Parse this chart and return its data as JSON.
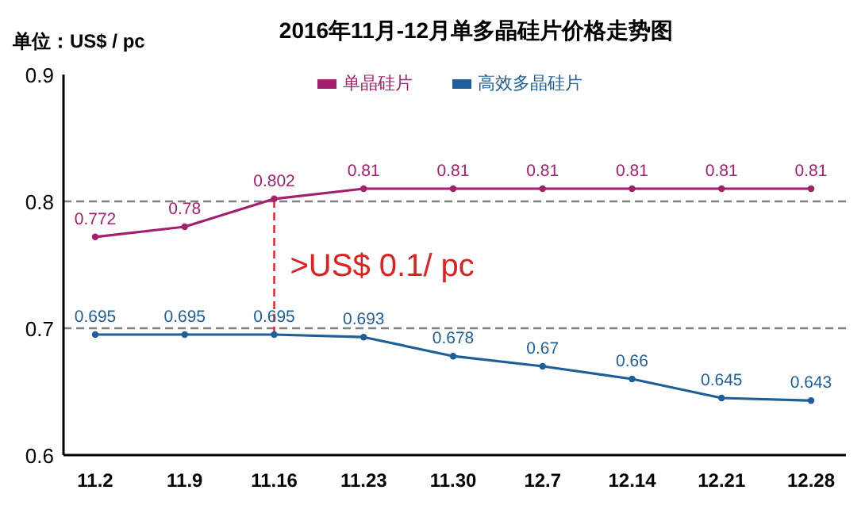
{
  "chart_data": {
    "type": "line",
    "title": "2016年11月-12月单多晶硅片价格走势图",
    "ylabel": "单位：US$ / pc",
    "categories": [
      "11.2",
      "11.9",
      "11.16",
      "11.23",
      "11.30",
      "12.7",
      "12.14",
      "12.21",
      "12.28"
    ],
    "series": [
      {
        "name": "单晶硅片",
        "color": "#a3206e",
        "values": [
          0.772,
          0.78,
          0.802,
          0.81,
          0.81,
          0.81,
          0.81,
          0.81,
          0.81
        ]
      },
      {
        "name": "高效多晶硅片",
        "color": "#1f5f99",
        "values": [
          0.695,
          0.695,
          0.695,
          0.693,
          0.678,
          0.67,
          0.66,
          0.645,
          0.643
        ]
      }
    ],
    "ylim": [
      0.6,
      0.9
    ],
    "yticks": [
      0.6,
      0.7,
      0.8,
      0.9
    ],
    "grid": false,
    "legend": "top",
    "marker": "circle",
    "line_style": "solid",
    "data_labels": true,
    "ref_lines": [
      {
        "axis": "y",
        "value": 0.8,
        "color": "#808080",
        "line_style": "dashed"
      },
      {
        "axis": "y",
        "value": 0.7,
        "color": "#808080",
        "line_style": "dashed"
      },
      {
        "axis": "x",
        "value": "11.16",
        "color": "#e02020",
        "line_style": "dashed"
      }
    ],
    "annotations": [
      {
        "text": ">US$ 0.1/ pc",
        "x": "11.16",
        "y": 0.75
      }
    ]
  }
}
